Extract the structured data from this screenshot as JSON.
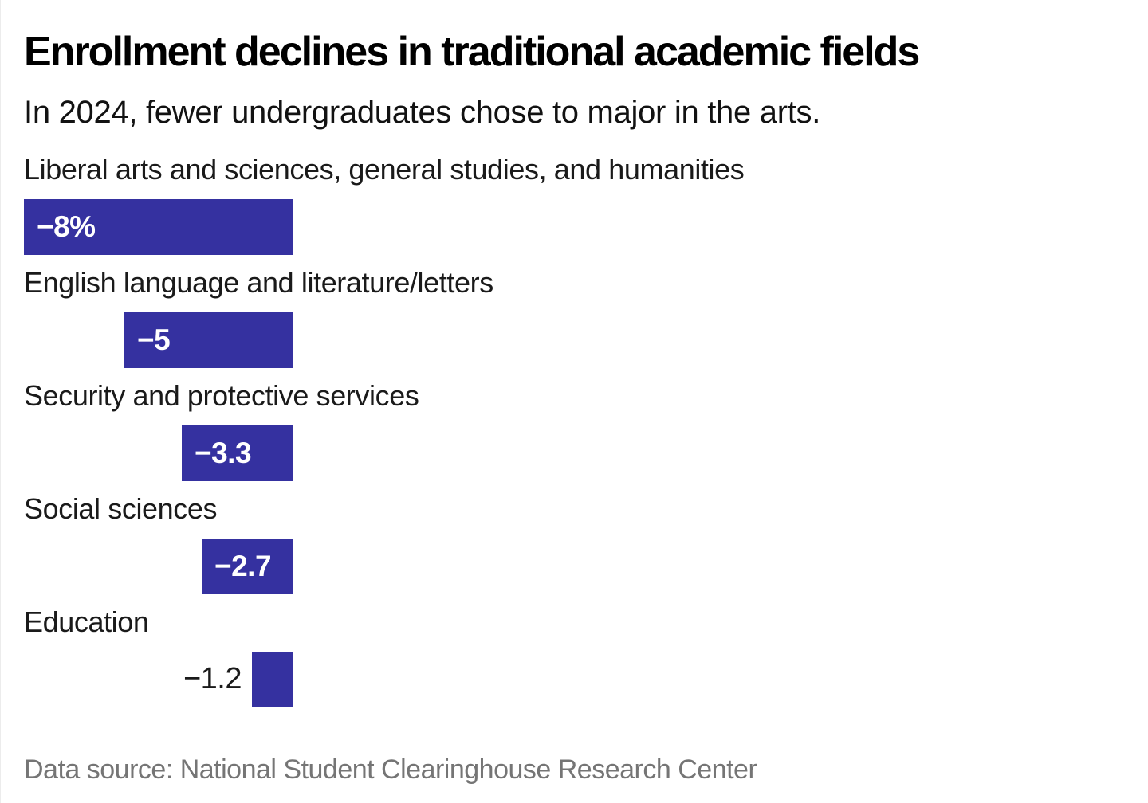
{
  "header": {
    "title": "Enrollment declines in traditional academic fields",
    "subtitle": "In 2024, fewer undergraduates chose to major in the arts."
  },
  "footer": {
    "source": "Data source: National Student Clearinghouse Research Center"
  },
  "colors": {
    "bar": "#3531A0",
    "value_inside": "#ffffff",
    "value_outside": "#1a1a1a",
    "title_text": "#000000",
    "source_text": "#757575"
  },
  "chart_data": {
    "type": "bar",
    "orientation": "horizontal",
    "title": "Enrollment declines in traditional academic fields",
    "subtitle": "In 2024, fewer undergraduates chose to major in the arts.",
    "unit": "percent change",
    "categories": [
      "Liberal arts and sciences, general studies, and humanities",
      "English language and literature/letters",
      "Security and protective services",
      "Social sciences",
      "Education"
    ],
    "values": [
      -8,
      -5,
      -3.3,
      -2.7,
      -1.2
    ],
    "value_labels": [
      "−8%",
      "−5",
      "−3.3",
      "−2.7",
      "−1.2"
    ],
    "label_inside": [
      true,
      true,
      true,
      true,
      false
    ],
    "xlim": [
      -8,
      0
    ],
    "axis_hidden": true,
    "grid": false,
    "legend": false
  }
}
